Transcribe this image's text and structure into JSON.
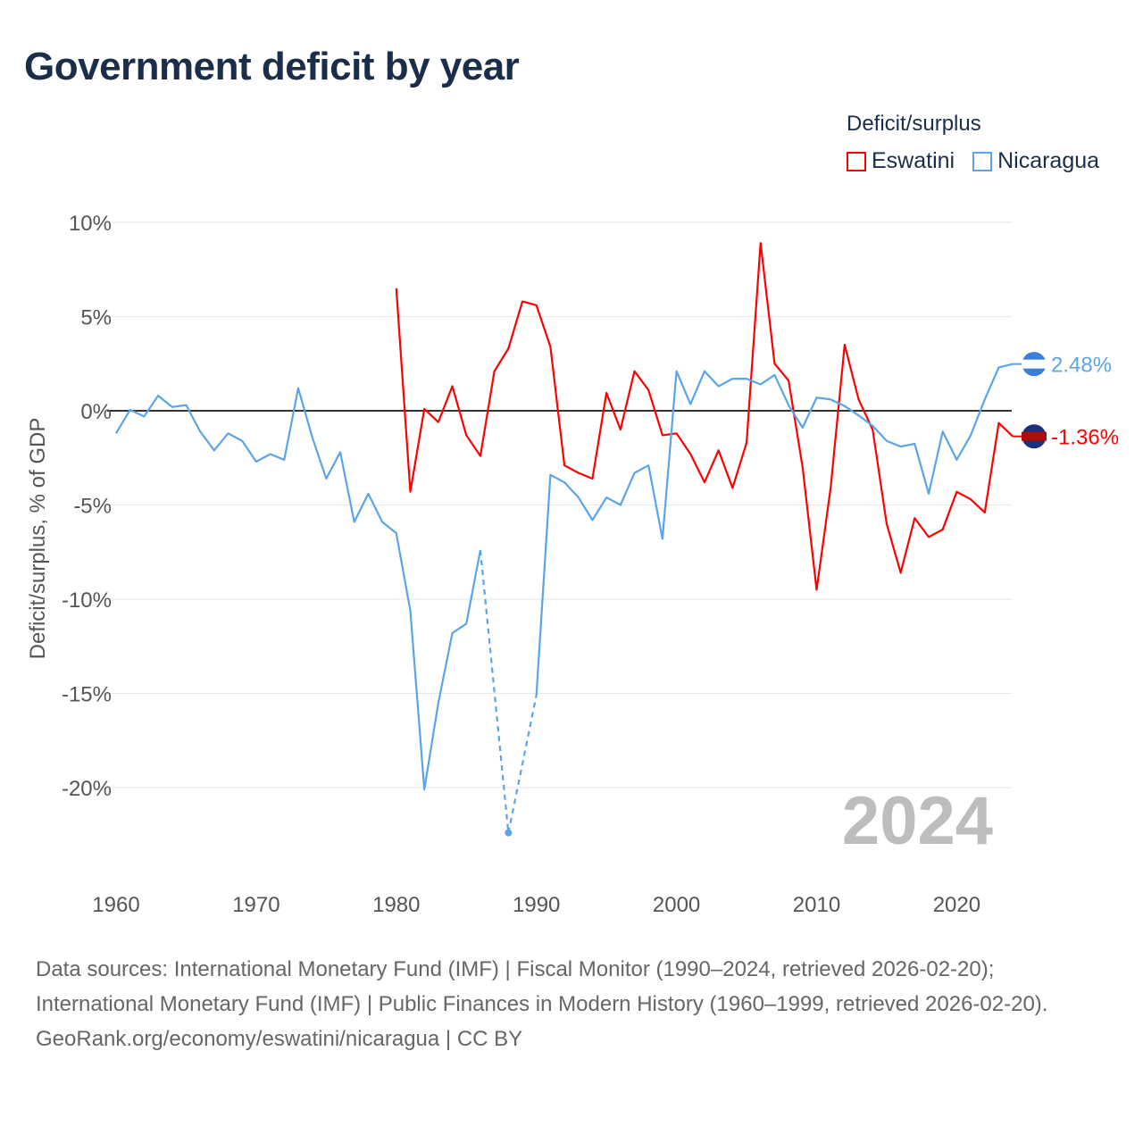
{
  "title": "Government deficit by year",
  "legend": {
    "title": "Deficit/surplus",
    "items": [
      {
        "label": "Eswatini",
        "color": "#ff0000"
      },
      {
        "label": "Nicaragua",
        "color": "#5ba4e8"
      }
    ]
  },
  "year_watermark": "2024",
  "footer": {
    "sources": "Data sources: International Monetary Fund (IMF) | Fiscal Monitor (1990–2024, retrieved 2026-02-20); International Monetary Fund (IMF) | Public Finances in Modern History (1960–1999, retrieved 2026-02-20).",
    "credit": "GeoRank.org/economy/eswatini/nicaragua | CC BY"
  },
  "chart_data": {
    "type": "line",
    "title": "Government deficit by year",
    "ylabel": "Deficit/surplus, % of GDP",
    "xlabel": "",
    "xlim": [
      1960,
      2024
    ],
    "ylim": [
      -24,
      10
    ],
    "yticks": [
      10,
      5,
      0,
      -5,
      -10,
      -15,
      -20
    ],
    "ytick_labels": [
      "10%",
      "5%",
      "0%",
      "-5%",
      "-10%",
      "-15%",
      "-20%"
    ],
    "xticks": [
      1960,
      1970,
      1980,
      1990,
      2000,
      2010,
      2020
    ],
    "xtick_labels": [
      "1960",
      "1970",
      "1980",
      "1990",
      "2000",
      "2010",
      "2020"
    ],
    "grid": true,
    "legend_position": "top-right",
    "series": [
      {
        "name": "Eswatini",
        "color": "#ff0000",
        "end_label": "-1.36%",
        "start_year": 1980,
        "values": [
          6.5,
          -4.3,
          0.1,
          -0.6,
          1.3,
          -1.3,
          -2.4,
          2.1,
          3.3,
          5.8,
          5.6,
          3.4,
          -2.9,
          -3.3,
          -3.6,
          0.95,
          -1.0,
          2.1,
          1.1,
          -1.3,
          -1.2,
          -2.3,
          -3.8,
          -2.1,
          -4.1,
          -1.7,
          8.9,
          2.5,
          1.6,
          -3.0,
          -9.5,
          -4.1,
          3.5,
          0.6,
          -1.0,
          -6.0,
          -8.6,
          -5.7,
          -6.7,
          -6.3,
          -4.3,
          -4.7,
          -5.4,
          -0.65,
          -1.36
        ]
      },
      {
        "name": "Nicaragua",
        "color": "#5ba4e8",
        "end_label": "2.48%",
        "start_year": 1960,
        "values": [
          -1.2,
          0.05,
          -0.3,
          0.8,
          0.2,
          0.3,
          -1.1,
          -2.1,
          -1.2,
          -1.6,
          -2.7,
          -2.3,
          -2.6,
          1.2,
          -1.4,
          -3.6,
          -2.2,
          -5.9,
          -4.4,
          -5.9,
          -6.5,
          -10.6,
          -20.1,
          -15.5,
          -11.8,
          -11.3,
          -7.4,
          null,
          -22.4,
          null,
          -15.1,
          -3.4,
          -3.8,
          -4.6,
          -5.8,
          -4.6,
          -5.0,
          -3.3,
          -2.9,
          -6.8,
          2.1,
          0.35,
          2.1,
          1.3,
          1.7,
          1.7,
          1.4,
          1.9,
          0.3,
          -0.9,
          0.7,
          0.6,
          0.25,
          -0.25,
          -0.8,
          -1.6,
          -1.9,
          -1.75,
          -4.4,
          -1.1,
          -2.6,
          -1.3,
          0.6,
          2.3,
          2.48
        ]
      }
    ]
  }
}
